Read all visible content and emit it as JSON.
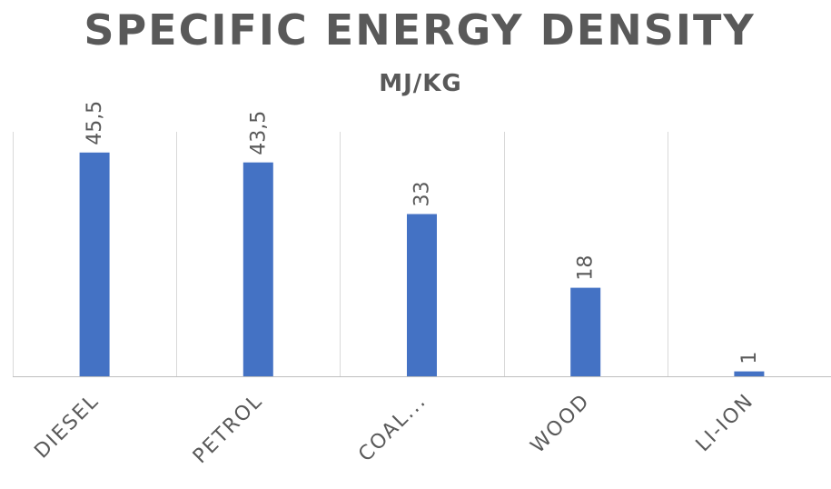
{
  "chart_data": {
    "type": "bar",
    "title": "SPECIFIC ENERGY DENSITY",
    "subtitle": "MJ/KG",
    "xlabel": "",
    "ylabel": "",
    "categories": [
      "DIESEL",
      "PETROL",
      "COAL...",
      "WOOD",
      "LI-ION"
    ],
    "values": [
      45.5,
      43.5,
      33,
      18,
      1
    ],
    "data_labels": [
      "45,5",
      "43,5",
      "33",
      "18",
      "1"
    ],
    "ylim": [
      0,
      50
    ],
    "grid": "vertical category separators",
    "legend": "none",
    "colors": {
      "bar": "#4472C4",
      "text": "#595959",
      "grid": "#D9D9D9",
      "axis": "#BFBFBF"
    }
  }
}
